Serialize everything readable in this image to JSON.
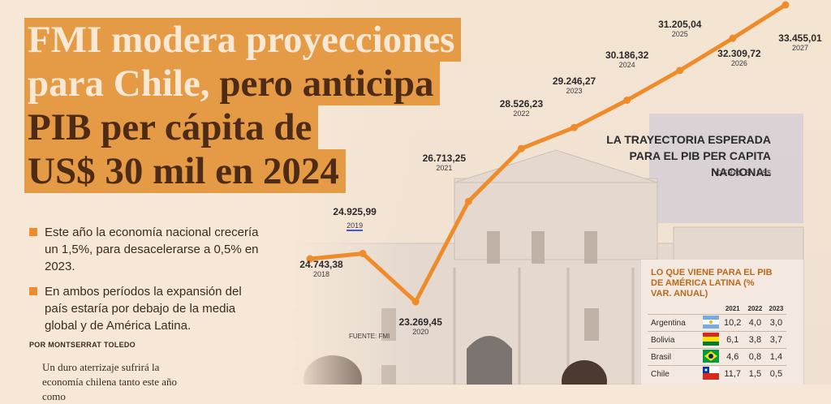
{
  "headline": {
    "line1": "FMI modera proyecciones",
    "line2_light": "para Chile,",
    "line2_dark": " pero anticipa",
    "line3": "PIB per cápita de",
    "line4": "US$ 30 mil en 2024"
  },
  "bullets": [
    "Este año la economía nacional crecería un 1,5%, para desacelerarse a 0,5% en 2023.",
    "En ambos períodos la expansión del país estaría por debajo de la media global y de América Latina."
  ],
  "byline": "POR MONTSERRAT TOLEDO",
  "body_text": "Un duro aterrizaje sufrirá la economía chilena tanto este año como",
  "chart_title": "LA TRAYECTORIA ESPERADA PARA EL PIB PER CAPITA NACIONAL",
  "chart_subtitle": "CIFRAS EN US$",
  "source": "FUENTE: FMI",
  "chart_data": {
    "type": "line",
    "x": [
      "2018",
      "2019",
      "2020",
      "2021",
      "2022",
      "2023",
      "2024",
      "2025",
      "2026",
      "2027"
    ],
    "values": [
      24743.38,
      24925.99,
      23269.45,
      26713.25,
      28526.23,
      29246.27,
      30186.32,
      31205.04,
      32309.72,
      33455.01
    ],
    "value_labels": [
      "24.743,38",
      "24.925,99",
      "23.269,45",
      "26.713,25",
      "28.526,23",
      "29.246,27",
      "30.186,32",
      "31.205,04",
      "32.309,72",
      "33.455,01"
    ],
    "year_labels": [
      "2018",
      "2019",
      "2020",
      "2021",
      "2022",
      "2023",
      "2024",
      "2025",
      "2026",
      "2027"
    ],
    "line_color": "#ee8c2c"
  },
  "panel": {
    "title": "LO QUE VIENE PARA EL PIB DE AMÉRICA LATINA (% VAR. ANUAL)",
    "columns": [
      "2021",
      "2022",
      "2023"
    ],
    "rows": [
      {
        "country": "Argentina",
        "values": [
          "10,2",
          "4,0",
          "3,0"
        ]
      },
      {
        "country": "Bolivia",
        "values": [
          "6,1",
          "3,8",
          "3,7"
        ]
      },
      {
        "country": "Brasil",
        "values": [
          "4,6",
          "0,8",
          "1,4"
        ]
      },
      {
        "country": "Chile",
        "values": [
          "11,7",
          "1,5",
          "0,5"
        ]
      }
    ]
  },
  "colors": {
    "accent": "#e59a46",
    "headline_text": "#4d2b14",
    "line": "#ee8c2c",
    "panel_title": "#b86a1a"
  }
}
